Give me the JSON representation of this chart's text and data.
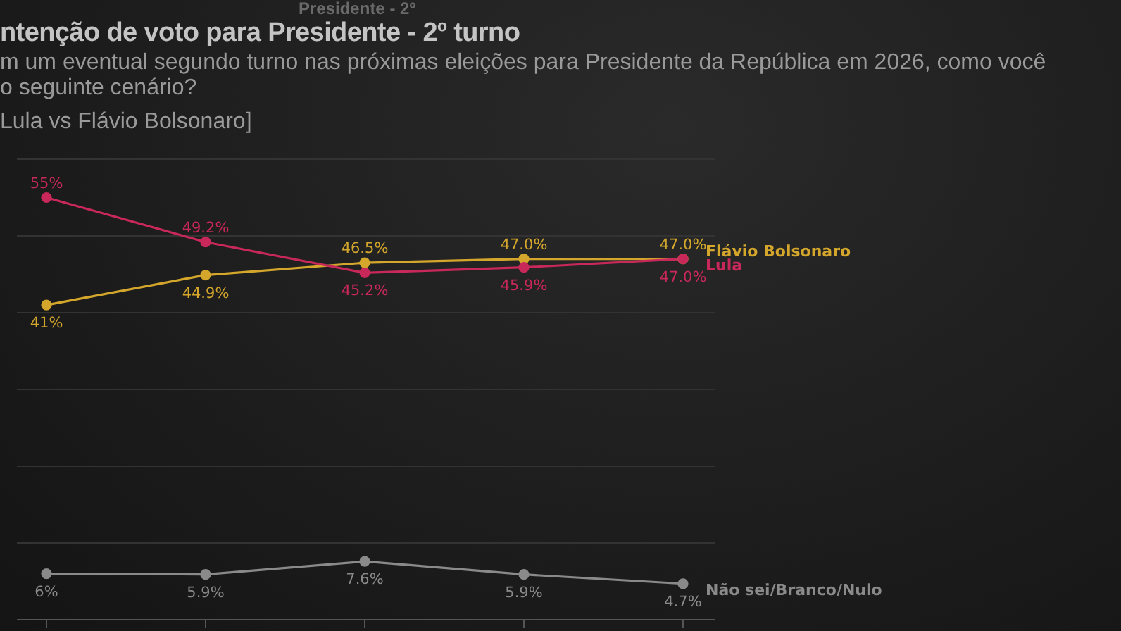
{
  "chart_data": {
    "type": "line",
    "title": "ntenção de voto para Presidente - 2º turno",
    "subtitle": "m um eventual segundo turno nas próximas eleições para Presidente da República em 2026, como você\no seguinte cenário?\nLula vs Flávio Bolsonaro]",
    "annotations": [
      "Presidente - 2º"
    ],
    "categories": [
      null,
      null,
      null,
      null,
      null
    ],
    "series": [
      {
        "name": "Flávio Bolsonaro",
        "color": "#d4a72c",
        "values": [
          41,
          44.9,
          46.5,
          47.0,
          47.0
        ],
        "value_labels": [
          "41%",
          "44.9%",
          "46.5%",
          "47.0%",
          "47.0%"
        ]
      },
      {
        "name": "Lula",
        "color": "#c8285a",
        "values": [
          55,
          49.2,
          45.2,
          45.9,
          47.0
        ],
        "value_labels": [
          "55%",
          "49.2%",
          "45.2%",
          "45.9%",
          "47.0%"
        ]
      },
      {
        "name": "Não sei/Branco/Nulo",
        "color": "#8a8a8a",
        "values": [
          6,
          5.9,
          7.6,
          5.9,
          4.7
        ],
        "value_labels": [
          "6%",
          "5.9%",
          "7.6%",
          "5.9%",
          "4.7%"
        ]
      }
    ],
    "ylim": [
      0,
      60
    ],
    "yticks": [
      {
        "value": 0,
        "label": null
      },
      {
        "value": 10,
        "label": null
      },
      {
        "value": 20,
        "label": null
      },
      {
        "value": 30,
        "label": null
      },
      {
        "value": 40,
        "label": null
      },
      {
        "value": 50,
        "label": null
      },
      {
        "value": 60,
        "label": null
      }
    ],
    "grid": "y",
    "legend": false,
    "tick_labels": false,
    "marker": "circle",
    "line_style": "solid"
  }
}
